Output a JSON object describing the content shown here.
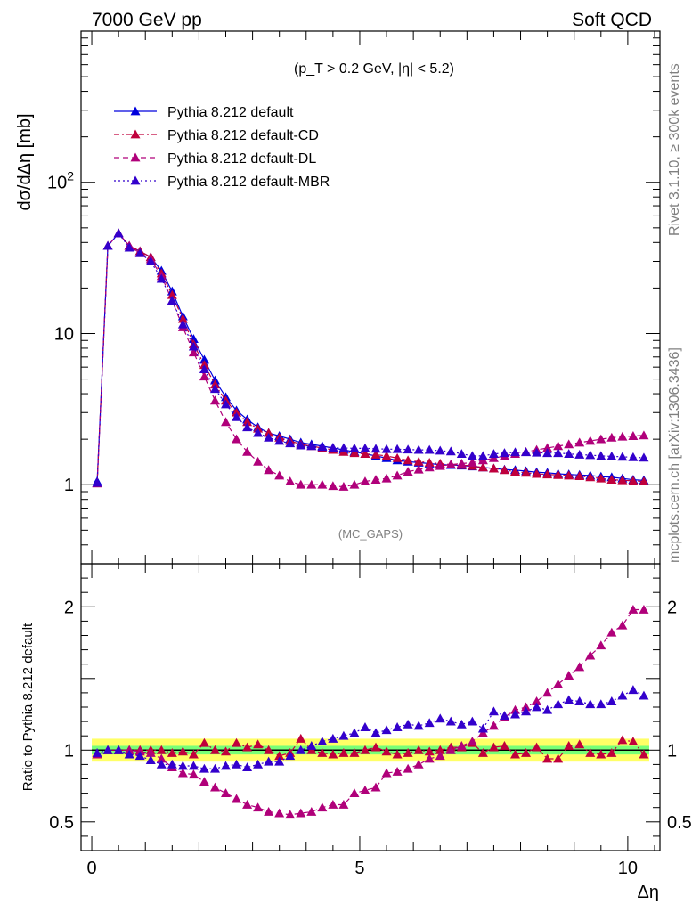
{
  "header": {
    "left": "7000 GeV pp",
    "right": "Soft QCD"
  },
  "side": {
    "rivet": "Rivet 3.1.10, ≥ 300k events",
    "mcplots": "mcplots.cern.ch [arXiv:1306.3436]"
  },
  "analysis_tag": "(MC_GAPS)",
  "cut_label": "(p_T > 0.2 GeV, |η| < 5.2)",
  "chart_data": [
    {
      "type": "line",
      "panel": "main",
      "ylabel": "dσ/dΔη [mb]",
      "xlabel": "Δη",
      "yscale": "log",
      "xlim": [
        -0.2,
        10.6
      ],
      "ylim": [
        0.3,
        1000
      ],
      "y_tick_labels": [
        "1",
        "10",
        "10^2"
      ],
      "x": [
        0.1,
        0.3,
        0.5,
        0.7,
        0.9,
        1.1,
        1.3,
        1.5,
        1.7,
        1.9,
        2.1,
        2.3,
        2.5,
        2.7,
        2.9,
        3.1,
        3.3,
        3.5,
        3.7,
        3.9,
        4.1,
        4.3,
        4.5,
        4.7,
        4.9,
        5.1,
        5.3,
        5.5,
        5.7,
        5.9,
        6.1,
        6.3,
        6.5,
        6.7,
        6.9,
        7.1,
        7.3,
        7.5,
        7.7,
        7.9,
        8.1,
        8.3,
        8.5,
        8.7,
        8.9,
        9.1,
        9.3,
        9.5,
        9.7,
        9.9,
        10.1,
        10.3
      ],
      "legend_position": "top-left",
      "series": [
        {
          "name": "Pythia 8.212 default",
          "color": "#0000dd",
          "dash": "solid",
          "values": [
            1.05,
            38,
            46,
            38,
            35,
            32,
            26,
            19,
            13,
            9.2,
            6.7,
            4.9,
            3.8,
            3.1,
            2.7,
            2.4,
            2.2,
            2.1,
            2.0,
            1.9,
            1.85,
            1.8,
            1.75,
            1.7,
            1.65,
            1.6,
            1.55,
            1.5,
            1.45,
            1.42,
            1.4,
            1.38,
            1.36,
            1.35,
            1.34,
            1.32,
            1.3,
            1.28,
            1.26,
            1.25,
            1.23,
            1.21,
            1.2,
            1.18,
            1.17,
            1.16,
            1.15,
            1.13,
            1.12,
            1.1,
            1.08,
            1.07
          ]
        },
        {
          "name": "Pythia 8.212 default-CD",
          "color": "#c0003c",
          "dash": "dashdot",
          "values": [
            1.02,
            38,
            46,
            38,
            35,
            32,
            25,
            18,
            12.5,
            8.5,
            6.2,
            4.6,
            3.6,
            3.0,
            2.6,
            2.35,
            2.2,
            2.05,
            1.95,
            1.85,
            1.8,
            1.75,
            1.7,
            1.65,
            1.62,
            1.6,
            1.58,
            1.55,
            1.5,
            1.45,
            1.42,
            1.4,
            1.38,
            1.36,
            1.35,
            1.33,
            1.3,
            1.28,
            1.25,
            1.22,
            1.2,
            1.18,
            1.17,
            1.16,
            1.15,
            1.14,
            1.12,
            1.1,
            1.08,
            1.07,
            1.06,
            1.05
          ]
        },
        {
          "name": "Pythia 8.212 default-DL",
          "color": "#b0007a",
          "dash": "dashed",
          "values": [
            1.02,
            38,
            46,
            38,
            34,
            31,
            24,
            16.5,
            11,
            7.5,
            5.2,
            3.6,
            2.6,
            2.0,
            1.65,
            1.42,
            1.25,
            1.15,
            1.05,
            1.0,
            1.0,
            1.0,
            0.98,
            0.97,
            1.0,
            1.05,
            1.08,
            1.1,
            1.15,
            1.22,
            1.26,
            1.3,
            1.33,
            1.36,
            1.38,
            1.4,
            1.45,
            1.5,
            1.55,
            1.6,
            1.65,
            1.7,
            1.75,
            1.8,
            1.85,
            1.9,
            1.95,
            2.0,
            2.05,
            2.08,
            2.1,
            2.12
          ]
        },
        {
          "name": "Pythia 8.212 default-MBR",
          "color": "#3300cc",
          "dash": "dotted",
          "values": [
            1.03,
            38,
            46,
            37,
            34,
            30,
            23,
            16.5,
            11.5,
            8.2,
            5.8,
            4.3,
            3.4,
            2.8,
            2.4,
            2.2,
            2.05,
            1.95,
            1.88,
            1.82,
            1.8,
            1.78,
            1.76,
            1.75,
            1.74,
            1.74,
            1.73,
            1.72,
            1.72,
            1.71,
            1.7,
            1.7,
            1.68,
            1.66,
            1.6,
            1.55,
            1.55,
            1.6,
            1.62,
            1.64,
            1.64,
            1.63,
            1.62,
            1.62,
            1.6,
            1.58,
            1.57,
            1.55,
            1.54,
            1.53,
            1.52,
            1.51
          ]
        }
      ]
    },
    {
      "type": "line",
      "panel": "ratio",
      "ylabel": "Ratio to Pythia 8.212 default",
      "xlabel": "Δη",
      "xlim": [
        -0.2,
        10.6
      ],
      "ylim": [
        0.3,
        2.3
      ],
      "y_tick_labels": [
        "0.5",
        "1",
        "2"
      ],
      "x_tick_labels": [
        "0",
        "5",
        "10"
      ],
      "reference_band": {
        "inner_color": "#77ff77",
        "outer_color": "#ffff66",
        "inner_halfwidth": 0.03,
        "outer_halfwidth": 0.08
      },
      "series": [
        {
          "name": "Pythia 8.212 default-CD",
          "color": "#c0003c",
          "dash": "dashdot",
          "values": [
            0.97,
            1.0,
            1.0,
            1.0,
            1.0,
            1.0,
            1.0,
            0.98,
            0.99,
            0.97,
            1.05,
            1.0,
            0.99,
            1.05,
            1.02,
            1.04,
            1.0,
            0.96,
            0.98,
            1.08,
            1.0,
            0.98,
            0.97,
            0.98,
            0.98,
            1.0,
            1.02,
            0.99,
            0.97,
            0.98,
            1.0,
            0.99,
            1.0,
            1.02,
            1.02,
            1.05,
            0.98,
            1.02,
            1.03,
            0.97,
            0.98,
            1.02,
            0.94,
            0.94,
            1.03,
            1.04,
            0.98,
            0.97,
            0.98,
            1.07,
            1.06,
            0.97
          ]
        },
        {
          "name": "Pythia 8.212 default-DL",
          "color": "#b0007a",
          "dash": "dashed",
          "values": [
            0.97,
            1.0,
            1.0,
            1.0,
            0.99,
            0.98,
            0.94,
            0.88,
            0.84,
            0.83,
            0.78,
            0.74,
            0.7,
            0.66,
            0.62,
            0.6,
            0.57,
            0.56,
            0.55,
            0.56,
            0.57,
            0.6,
            0.62,
            0.62,
            0.7,
            0.72,
            0.74,
            0.84,
            0.85,
            0.87,
            0.9,
            0.94,
            0.96,
            1.0,
            1.03,
            1.06,
            1.12,
            1.17,
            1.23,
            1.28,
            1.3,
            1.34,
            1.4,
            1.46,
            1.52,
            1.58,
            1.66,
            1.73,
            1.82,
            1.87,
            1.98,
            1.98
          ]
        },
        {
          "name": "Pythia 8.212 default-MBR",
          "color": "#3300cc",
          "dash": "dotted",
          "values": [
            0.98,
            1.0,
            1.0,
            0.97,
            0.96,
            0.93,
            0.9,
            0.9,
            0.89,
            0.89,
            0.87,
            0.87,
            0.89,
            0.9,
            0.88,
            0.9,
            0.92,
            0.92,
            0.96,
            1.0,
            1.03,
            1.06,
            1.08,
            1.1,
            1.12,
            1.16,
            1.12,
            1.14,
            1.16,
            1.18,
            1.17,
            1.19,
            1.22,
            1.2,
            1.18,
            1.2,
            1.15,
            1.27,
            1.24,
            1.25,
            1.27,
            1.3,
            1.28,
            1.32,
            1.35,
            1.34,
            1.32,
            1.32,
            1.34,
            1.38,
            1.42,
            1.38
          ]
        }
      ]
    }
  ]
}
